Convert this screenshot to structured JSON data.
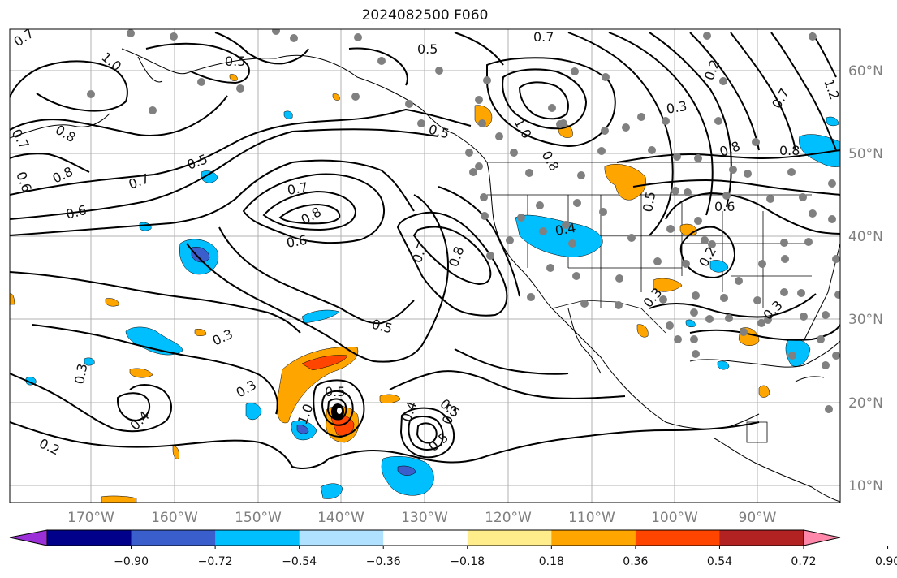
{
  "title": "2024082500 F060",
  "latitude_labels": [
    "60°N",
    "50°N",
    "40°N",
    "30°N",
    "20°N",
    "10°N"
  ],
  "longitude_labels": [
    "170°W",
    "160°W",
    "150°W",
    "140°W",
    "130°W",
    "120°W",
    "110°W",
    "100°W",
    "90°W"
  ],
  "colorbar": {
    "ticks": [
      "−0.90",
      "−0.72",
      "−0.54",
      "−0.36",
      "−0.18",
      "0.18",
      "0.36",
      "0.54",
      "0.72",
      "0.90"
    ],
    "colors": [
      "#9b30d9",
      "#00008b",
      "#3a5fcd",
      "#00bfff",
      "#b0e2ff",
      "#ffffff",
      "#ffec8b",
      "#ffa500",
      "#ff4500",
      "#b22222",
      "#ff88aa"
    ]
  },
  "contour_labels": [
    "0.7",
    "1.0",
    "0.5",
    "0.5",
    "0.7",
    "0.8",
    "0.7",
    "0.6",
    "0.5",
    "0.7",
    "0.8",
    "0.6",
    "0.6",
    "0.7",
    "0.8",
    "0.5",
    "0.3",
    "0.5",
    "0.3",
    "0.3",
    "0.4",
    "0.2",
    "0.5",
    "1.0",
    "0.5",
    "0.4",
    "0.3",
    "1.0",
    "0.8",
    "0.7",
    "0.3",
    "0.8",
    "0.8",
    "0.5",
    "0.6",
    "0.2",
    "0.3",
    "0.2",
    "0.3",
    "0.8",
    "0.7",
    "0.4",
    "1.2",
    "0.5"
  ],
  "colors": {
    "contour": "#000000",
    "grid": "#b0b0b0",
    "station_dot": "#808080",
    "coast": "#000000"
  }
}
